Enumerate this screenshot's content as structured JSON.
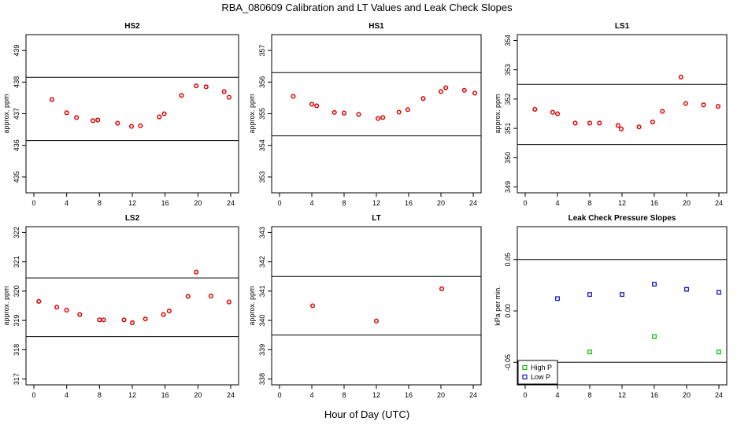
{
  "title": "RBA_080609  Calibration and LT Values and Leak Check Slopes",
  "xlabel": "Hour of Day (UTC)",
  "colors": {
    "red_points": "#e00000",
    "high_p": "#00bb00",
    "low_p": "#0000cc"
  },
  "chart_data": [
    {
      "type": "scatter",
      "title": "HS2",
      "ylabel": "approx. ppm",
      "xlim": [
        0,
        24
      ],
      "ylim": [
        434.5,
        439.5
      ],
      "xticks": [
        0,
        4,
        8,
        12,
        16,
        20,
        24
      ],
      "yticks": [
        435,
        436,
        437,
        438,
        439
      ],
      "limits": [
        436.15,
        438.15
      ],
      "series": [
        {
          "color": "red",
          "x": [
            2.2,
            4.0,
            5.2,
            7.2,
            7.8,
            10.2,
            11.9,
            13.0,
            15.3,
            15.9,
            18.0,
            19.8,
            21.0,
            23.2,
            23.8
          ],
          "y": [
            437.45,
            437.03,
            436.88,
            436.78,
            436.8,
            436.7,
            436.6,
            436.62,
            436.9,
            437.0,
            437.58,
            437.88,
            437.85,
            437.7,
            437.52
          ]
        }
      ]
    },
    {
      "type": "scatter",
      "title": "HS1",
      "ylabel": "approx. ppm",
      "xlim": [
        0,
        24
      ],
      "ylim": [
        352.5,
        357.5
      ],
      "xticks": [
        0,
        4,
        8,
        12,
        16,
        20,
        24
      ],
      "yticks": [
        353,
        354,
        355,
        356,
        357
      ],
      "limits": [
        354.3,
        356.3
      ],
      "series": [
        {
          "color": "red",
          "x": [
            1.7,
            4.0,
            4.6,
            6.8,
            8.0,
            9.8,
            12.2,
            12.8,
            14.8,
            15.9,
            17.8,
            20.0,
            20.6,
            22.9,
            24.2
          ],
          "y": [
            355.55,
            355.3,
            355.25,
            355.04,
            355.02,
            354.98,
            354.85,
            354.88,
            355.05,
            355.13,
            355.48,
            355.7,
            355.82,
            355.74,
            355.65
          ]
        }
      ]
    },
    {
      "type": "scatter",
      "title": "LS1",
      "ylabel": "approx. ppm",
      "xlim": [
        0,
        24
      ],
      "ylim": [
        348.8,
        354.2
      ],
      "xticks": [
        0,
        4,
        8,
        12,
        16,
        20,
        24
      ],
      "yticks": [
        349,
        350,
        351,
        352,
        353,
        354
      ],
      "limits": [
        350.45,
        352.5
      ],
      "series": [
        {
          "color": "red",
          "x": [
            1.2,
            3.4,
            4.0,
            6.2,
            8.0,
            9.2,
            11.5,
            11.9,
            14.1,
            15.8,
            17.0,
            19.3,
            19.9,
            22.1,
            23.9
          ],
          "y": [
            351.65,
            351.55,
            351.5,
            351.18,
            351.18,
            351.18,
            351.1,
            350.98,
            351.05,
            351.22,
            351.58,
            352.75,
            351.85,
            351.8,
            351.75
          ]
        }
      ]
    },
    {
      "type": "scatter",
      "title": "LS2",
      "ylabel": "approx. ppm",
      "xlim": [
        0,
        24
      ],
      "ylim": [
        316.8,
        322.2
      ],
      "xticks": [
        0,
        4,
        8,
        12,
        16,
        20,
        24
      ],
      "yticks": [
        317,
        318,
        319,
        320,
        321,
        322
      ],
      "limits": [
        318.45,
        320.45
      ],
      "series": [
        {
          "color": "red",
          "x": [
            0.6,
            2.8,
            4.0,
            5.6,
            8.0,
            8.5,
            11.0,
            12.0,
            13.6,
            15.8,
            16.5,
            18.8,
            19.8,
            21.6,
            23.8
          ],
          "y": [
            319.65,
            319.45,
            319.35,
            319.2,
            319.02,
            319.02,
            319.02,
            318.92,
            319.05,
            319.2,
            319.32,
            319.82,
            320.65,
            319.83,
            319.63
          ]
        }
      ]
    },
    {
      "type": "scatter",
      "title": "LT",
      "ylabel": "approx. ppm",
      "xlim": [
        0,
        24
      ],
      "ylim": [
        337.8,
        343.2
      ],
      "xticks": [
        0,
        4,
        8,
        12,
        16,
        20,
        24
      ],
      "yticks": [
        338,
        339,
        340,
        341,
        342,
        343
      ],
      "limits": [
        339.5,
        341.5
      ],
      "series": [
        {
          "color": "red",
          "x": [
            4.1,
            12.0,
            20.1
          ],
          "y": [
            340.5,
            339.98,
            341.08
          ]
        }
      ]
    },
    {
      "type": "scatter",
      "title": "Leak Check Pressure Slopes",
      "ylabel": "kPa per min.",
      "xlim": [
        0,
        24
      ],
      "ylim": [
        -0.072,
        0.082
      ],
      "xticks": [
        0,
        4,
        8,
        12,
        16,
        20,
        24
      ],
      "yticks": [
        -0.05,
        0.0,
        0.05
      ],
      "ytick_labels": [
        "-0.05",
        "0.00",
        "0.05"
      ],
      "limits": [
        -0.05,
        0.05
      ],
      "legend": {
        "placement": "bottom-left",
        "entries": [
          "High P",
          "Low P"
        ]
      },
      "series": [
        {
          "name": "High P",
          "color": "green",
          "x": [
            8.0,
            16.0,
            24.0
          ],
          "y": [
            -0.04,
            -0.025,
            -0.04
          ]
        },
        {
          "name": "Low P",
          "color": "blue",
          "x": [
            4.0,
            8.0,
            12.0,
            16.0,
            20.0,
            24.0
          ],
          "y": [
            0.012,
            0.016,
            0.016,
            0.026,
            0.021,
            0.018
          ]
        }
      ]
    }
  ]
}
